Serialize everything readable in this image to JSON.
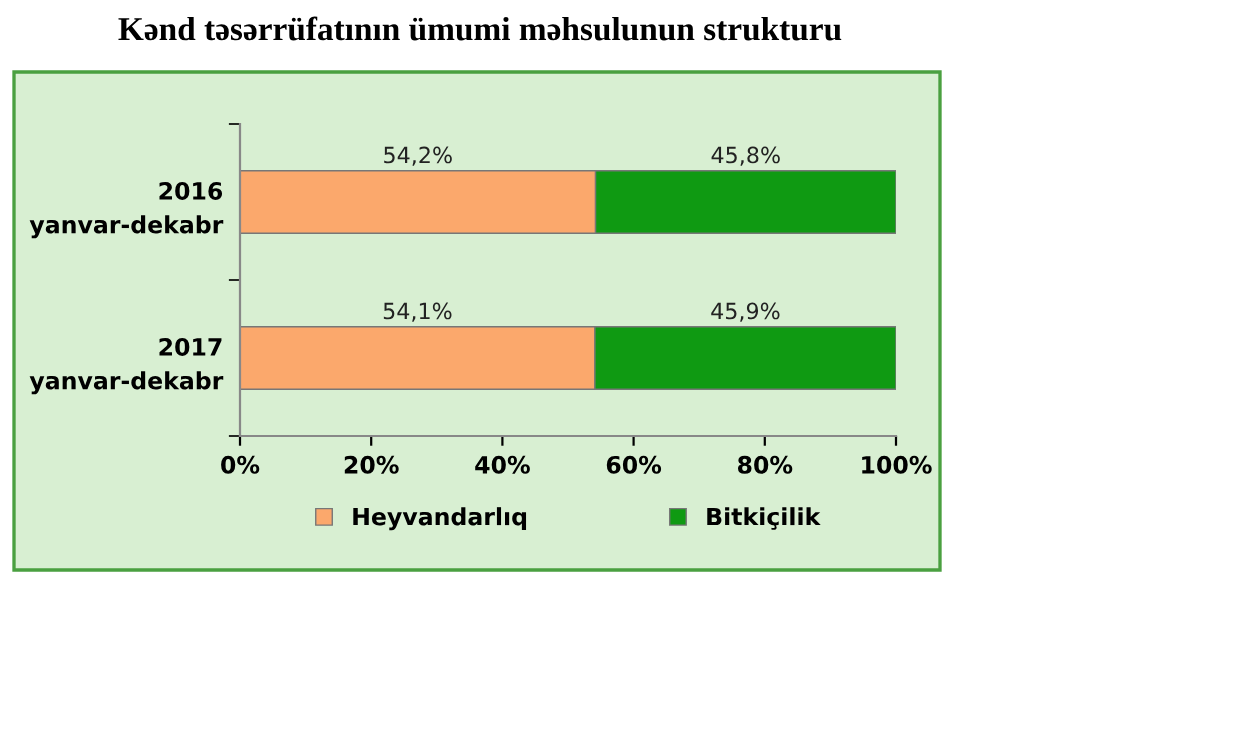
{
  "chart_data": {
    "type": "bar",
    "orientation": "horizontal",
    "stacked": true,
    "title": "Kənd təsərrüfatının ümumi məhsulunun strukturu",
    "categories": [
      "2016\nyanvar-dekabr",
      "2017\nyanvar-dekabr"
    ],
    "series": [
      {
        "name": "Heyvandarlıq",
        "color": "#fba86c",
        "values": [
          54.2,
          54.1
        ],
        "value_labels": [
          "54,2%",
          "54,1%"
        ]
      },
      {
        "name": "Bitkiçilik",
        "color": "#0f9a12",
        "values": [
          45.8,
          45.9
        ],
        "value_labels": [
          "45,8%",
          "45,9%"
        ]
      }
    ],
    "xlim": [
      0,
      100
    ],
    "xticks": [
      {
        "value": 0,
        "label": "0%"
      },
      {
        "value": 20,
        "label": "20%"
      },
      {
        "value": 40,
        "label": "40%"
      },
      {
        "value": 60,
        "label": "60%"
      },
      {
        "value": 80,
        "label": "80%"
      },
      {
        "value": 100,
        "label": "100%"
      }
    ],
    "grid": false,
    "legend": "bottom"
  }
}
